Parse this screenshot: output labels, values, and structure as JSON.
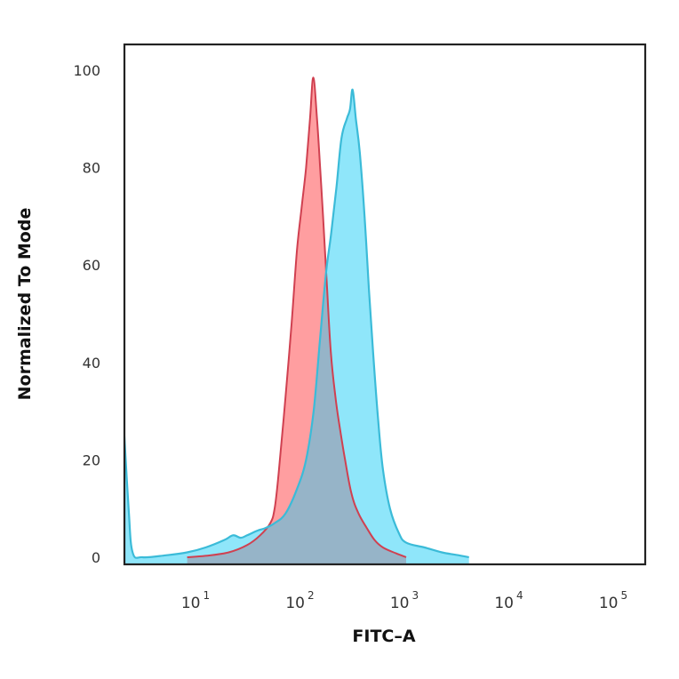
{
  "chart_data": {
    "type": "area",
    "subtype": "flow-cytometry-histogram-overlay",
    "title": "",
    "xlabel": "FITC–A",
    "ylabel": "Normalized To Mode",
    "x_scale": "log",
    "xlim": [
      2,
      150000
    ],
    "ylim": [
      0,
      100
    ],
    "x_ticks": [
      {
        "base": "10",
        "exp": "1",
        "value": 10
      },
      {
        "base": "10",
        "exp": "2",
        "value": 100
      },
      {
        "base": "10",
        "exp": "3",
        "value": 1000
      },
      {
        "base": "10",
        "exp": "4",
        "value": 10000
      },
      {
        "base": "10",
        "exp": "5",
        "value": 100000
      }
    ],
    "y_ticks": [
      "0",
      "20",
      "40",
      "60",
      "80",
      "100"
    ],
    "grid": false,
    "legend": "none",
    "series": [
      {
        "name": "red-histogram",
        "fill": "#FF9EA0",
        "stroke": "#D04050",
        "peak_x": 129,
        "peak_y": 98.5,
        "points": [
          [
            8,
            0
          ],
          [
            12,
            0.3
          ],
          [
            20,
            1
          ],
          [
            30,
            2.5
          ],
          [
            40,
            4.5
          ],
          [
            50,
            7
          ],
          [
            55,
            10
          ],
          [
            60,
            17
          ],
          [
            70,
            33
          ],
          [
            80,
            48
          ],
          [
            90,
            63
          ],
          [
            100,
            72
          ],
          [
            110,
            80
          ],
          [
            120,
            90
          ],
          [
            129,
            98.5
          ],
          [
            140,
            90
          ],
          [
            150,
            80
          ],
          [
            160,
            70
          ],
          [
            175,
            55
          ],
          [
            190,
            42
          ],
          [
            210,
            33
          ],
          [
            230,
            27
          ],
          [
            260,
            20
          ],
          [
            300,
            13
          ],
          [
            350,
            9
          ],
          [
            420,
            6
          ],
          [
            500,
            3.5
          ],
          [
            600,
            2
          ],
          [
            800,
            0.8
          ],
          [
            1000,
            0
          ]
        ]
      },
      {
        "name": "blue-histogram",
        "fill": "#8FE6FA",
        "stroke": "#3BBBD8",
        "peak_x": 307,
        "peak_y": 96,
        "points": [
          [
            2,
            25
          ],
          [
            2.2,
            10
          ],
          [
            2.4,
            1
          ],
          [
            3,
            0
          ],
          [
            5,
            0.4
          ],
          [
            8,
            1
          ],
          [
            12,
            2
          ],
          [
            18,
            3.5
          ],
          [
            22,
            4.5
          ],
          [
            26,
            4
          ],
          [
            30,
            4.5
          ],
          [
            38,
            5.5
          ],
          [
            45,
            6
          ],
          [
            55,
            7
          ],
          [
            70,
            9
          ],
          [
            90,
            14
          ],
          [
            110,
            20
          ],
          [
            130,
            30
          ],
          [
            150,
            45
          ],
          [
            170,
            58
          ],
          [
            190,
            66
          ],
          [
            215,
            76
          ],
          [
            240,
            86
          ],
          [
            270,
            90
          ],
          [
            290,
            92
          ],
          [
            307,
            96
          ],
          [
            330,
            90
          ],
          [
            360,
            83
          ],
          [
            400,
            70
          ],
          [
            440,
            55
          ],
          [
            490,
            40
          ],
          [
            540,
            28
          ],
          [
            600,
            18
          ],
          [
            700,
            10
          ],
          [
            850,
            5
          ],
          [
            1000,
            3
          ],
          [
            1500,
            2
          ],
          [
            2200,
            1
          ],
          [
            3000,
            0.5
          ],
          [
            4000,
            0
          ]
        ]
      }
    ],
    "overlap_fill": "#96B4C8"
  }
}
